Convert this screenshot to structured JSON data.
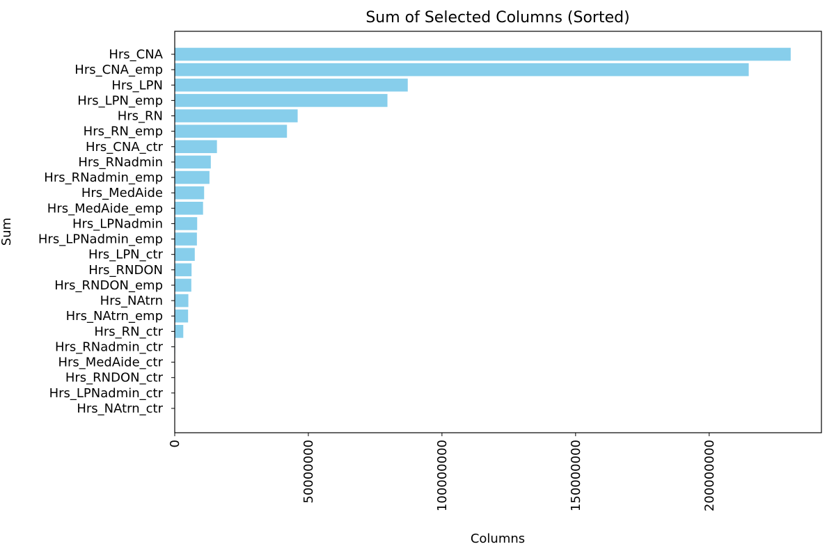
{
  "chart_data": {
    "type": "bar",
    "orientation": "horizontal",
    "title": "Sum of Selected Columns (Sorted)",
    "xlabel": "Columns",
    "ylabel": "Sum",
    "categories": [
      "Hrs_CNA",
      "Hrs_CNA_emp",
      "Hrs_LPN",
      "Hrs_LPN_emp",
      "Hrs_RN",
      "Hrs_RN_emp",
      "Hrs_CNA_ctr",
      "Hrs_RNadmin",
      "Hrs_RNadmin_emp",
      "Hrs_MedAide",
      "Hrs_MedAide_emp",
      "Hrs_LPNadmin",
      "Hrs_LPNadmin_emp",
      "Hrs_LPN_ctr",
      "Hrs_RNDON",
      "Hrs_RNDON_emp",
      "Hrs_NAtrn",
      "Hrs_NAtrn_emp",
      "Hrs_RN_ctr",
      "Hrs_RNadmin_ctr",
      "Hrs_MedAide_ctr",
      "Hrs_RNDON_ctr",
      "Hrs_LPNadmin_ctr",
      "Hrs_NAtrn_ctr"
    ],
    "values": [
      230500000,
      214800000,
      87200000,
      79600000,
      46000000,
      42000000,
      15800000,
      13500000,
      13000000,
      11000000,
      10600000,
      8400000,
      8300000,
      7500000,
      6300000,
      6200000,
      5100000,
      5000000,
      3200000,
      150000,
      100000,
      80000,
      60000,
      40000
    ],
    "xlim": [
      0,
      242000000
    ],
    "xticks": [
      0,
      50000000,
      100000000,
      150000000,
      200000000
    ],
    "xtick_labels": [
      "0",
      "50000000",
      "100000000",
      "150000000",
      "200000000"
    ],
    "xtick_rotation": "vertical",
    "bar_color": "#87ceeb",
    "grid": false,
    "legend": "none"
  }
}
